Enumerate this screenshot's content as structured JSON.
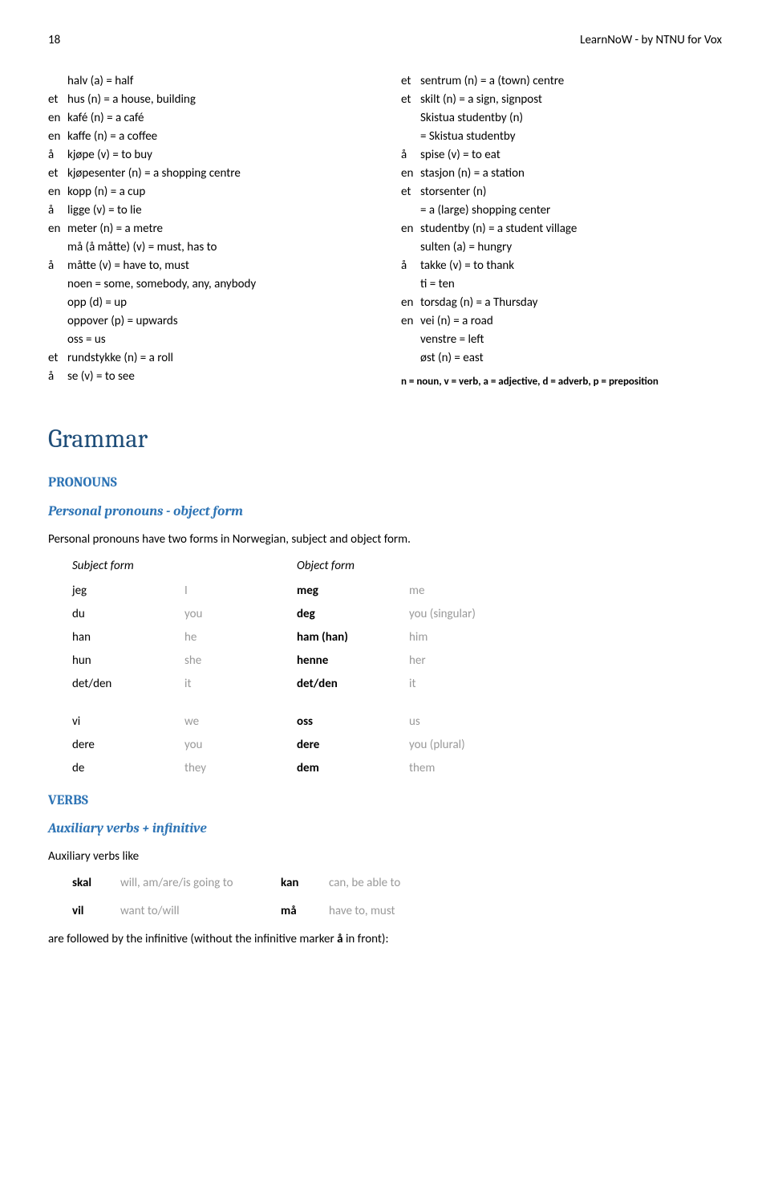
{
  "header": {
    "page_num": "18",
    "source": "LearnNoW - by NTNU for Vox"
  },
  "vocab_left": [
    {
      "p": "",
      "t": "halv (a) = half"
    },
    {
      "p": "et",
      "t": "hus (n) = a house, building"
    },
    {
      "p": "en",
      "t": "kafé (n) = a café"
    },
    {
      "p": "en",
      "t": "kaffe (n) = a coffee"
    },
    {
      "p": "å",
      "t": "kjøpe (v) = to buy"
    },
    {
      "p": "et",
      "t": "kjøpesenter (n) = a shopping centre"
    },
    {
      "p": "en",
      "t": "kopp (n) = a cup"
    },
    {
      "p": "å",
      "t": "ligge (v) = to lie"
    },
    {
      "p": "en",
      "t": "meter (n) = a metre"
    },
    {
      "p": "",
      "t": "må (å måtte) (v) = must, has to"
    },
    {
      "p": "å",
      "t": "måtte (v) = have to, must"
    },
    {
      "p": "",
      "t": "noen = some, somebody, any, anybody"
    },
    {
      "p": "",
      "t": "opp (d) = up"
    },
    {
      "p": "",
      "t": "oppover (p) = upwards"
    },
    {
      "p": "",
      "t": "oss = us"
    },
    {
      "p": "et",
      "t": "rundstykke (n) = a roll"
    },
    {
      "p": "å",
      "t": "se (v) = to see"
    }
  ],
  "vocab_right": [
    {
      "p": "et",
      "t": "sentrum (n) = a (town) centre"
    },
    {
      "p": "et",
      "t": "skilt (n) = a sign, signpost"
    },
    {
      "p": "",
      "t": "Skistua studentby (n)"
    },
    {
      "p": "",
      "t": "= Skistua studentby"
    },
    {
      "p": "å",
      "t": "spise (v) = to eat"
    },
    {
      "p": "en",
      "t": "stasjon (n) = a station"
    },
    {
      "p": "et",
      "t": "storsenter (n)"
    },
    {
      "p": "",
      "t": "= a (large) shopping center"
    },
    {
      "p": "en",
      "t": "studentby (n) = a student village"
    },
    {
      "p": "",
      "t": "sulten (a) = hungry"
    },
    {
      "p": "å",
      "t": "takke (v) = to thank"
    },
    {
      "p": "",
      "t": "ti = ten"
    },
    {
      "p": "en",
      "t": "torsdag (n) = a Thursday"
    },
    {
      "p": "en",
      "t": "vei (n) = a road"
    },
    {
      "p": "",
      "t": "venstre = left"
    },
    {
      "p": "",
      "t": "øst (n) = east"
    }
  ],
  "legend": "n = noun, v = verb, a = adjective, d = adverb, p = preposition",
  "grammar": {
    "title": "Grammar",
    "pronouns_heading": "PRONOUNS",
    "pronouns_sub": "Personal pronouns - object form",
    "pronouns_intro": "Personal pronouns have two forms in Norwegian, subject and object form.",
    "subject_form": "Subject form",
    "object_form": "Object form",
    "rows1": [
      {
        "s": "jeg",
        "se": "I",
        "o": "meg",
        "oe": "me"
      },
      {
        "s": "du",
        "se": "you",
        "o": "deg",
        "oe": "you (singular)"
      },
      {
        "s": "han",
        "se": "he",
        "o": "ham (han)",
        "oe": "him"
      },
      {
        "s": "hun",
        "se": "she",
        "o": "henne",
        "oe": "her"
      },
      {
        "s": "det/den",
        "se": "it",
        "o": "det/den",
        "oe": "it"
      }
    ],
    "rows2": [
      {
        "s": "vi",
        "se": "we",
        "o": "oss",
        "oe": "us"
      },
      {
        "s": "dere",
        "se": "you",
        "o": "dere",
        "oe": "you (plural)"
      },
      {
        "s": "de",
        "se": "they",
        "o": "dem",
        "oe": "them"
      }
    ],
    "verbs_heading": "VERBS",
    "verbs_sub": "Auxiliary verbs + infinitive",
    "aux_intro": "Auxiliary verbs like",
    "aux_rows": [
      {
        "w1": "skal",
        "e1": "will, am/are/is going to",
        "w2": "kan",
        "e2": "can, be able to"
      },
      {
        "w1": "vil",
        "e1": "want to/will",
        "w2": "må",
        "e2": "have to, must"
      }
    ],
    "aux_outro_pre": "are followed by the infinitive (without the infinitive marker ",
    "aux_outro_bold": "å",
    "aux_outro_post": " in front):"
  }
}
